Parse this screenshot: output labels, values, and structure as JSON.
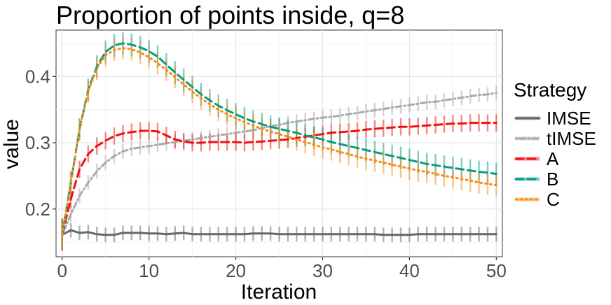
{
  "chart_data": {
    "type": "line",
    "title": "Proportion of points inside, q=8",
    "xlabel": "Iteration",
    "ylabel": "value",
    "xlim": [
      -0.7,
      50.7
    ],
    "ylim": [
      0.128,
      0.47
    ],
    "x_ticks": [
      0,
      10,
      20,
      30,
      40,
      50
    ],
    "y_ticks": [
      0.2,
      0.3,
      0.4
    ],
    "grid": true,
    "legend": {
      "title": "Strategy",
      "position": "right"
    },
    "x": [
      0,
      1,
      2,
      3,
      4,
      5,
      6,
      7,
      8,
      9,
      10,
      11,
      12,
      13,
      14,
      15,
      16,
      17,
      18,
      19,
      20,
      21,
      22,
      23,
      24,
      25,
      26,
      27,
      28,
      29,
      30,
      31,
      32,
      33,
      34,
      35,
      36,
      37,
      38,
      39,
      40,
      41,
      42,
      43,
      44,
      45,
      46,
      47,
      48,
      49,
      50
    ],
    "series": [
      {
        "name": "IMSE",
        "color": "#666666",
        "dash": "solid",
        "error": 0.011,
        "values": [
          0.161,
          0.168,
          0.164,
          0.165,
          0.162,
          0.161,
          0.161,
          0.164,
          0.164,
          0.164,
          0.163,
          0.163,
          0.162,
          0.163,
          0.164,
          0.162,
          0.162,
          0.162,
          0.162,
          0.162,
          0.162,
          0.162,
          0.163,
          0.163,
          0.163,
          0.162,
          0.162,
          0.162,
          0.162,
          0.162,
          0.162,
          0.162,
          0.162,
          0.162,
          0.162,
          0.162,
          0.162,
          0.161,
          0.161,
          0.161,
          0.161,
          0.162,
          0.162,
          0.162,
          0.162,
          0.162,
          0.162,
          0.162,
          0.162,
          0.162,
          0.162
        ]
      },
      {
        "name": "tIMSE",
        "color": "#a9a9a9",
        "dash": "dotdash",
        "error": 0.011,
        "values": [
          0.161,
          0.192,
          0.22,
          0.24,
          0.257,
          0.27,
          0.28,
          0.287,
          0.291,
          0.293,
          0.295,
          0.297,
          0.299,
          0.301,
          0.303,
          0.305,
          0.307,
          0.309,
          0.311,
          0.313,
          0.315,
          0.317,
          0.319,
          0.322,
          0.325,
          0.327,
          0.33,
          0.332,
          0.334,
          0.336,
          0.338,
          0.339,
          0.341,
          0.343,
          0.345,
          0.347,
          0.349,
          0.351,
          0.353,
          0.355,
          0.357,
          0.359,
          0.361,
          0.362,
          0.364,
          0.366,
          0.368,
          0.37,
          0.372,
          0.373,
          0.375
        ]
      },
      {
        "name": "A",
        "color": "#ee1111",
        "dash": "longdash",
        "error": 0.013,
        "values": [
          0.162,
          0.215,
          0.26,
          0.283,
          0.295,
          0.303,
          0.31,
          0.314,
          0.316,
          0.318,
          0.318,
          0.317,
          0.311,
          0.305,
          0.302,
          0.3,
          0.3,
          0.301,
          0.301,
          0.301,
          0.301,
          0.3,
          0.301,
          0.302,
          0.303,
          0.304,
          0.305,
          0.307,
          0.309,
          0.311,
          0.313,
          0.315,
          0.316,
          0.317,
          0.318,
          0.32,
          0.321,
          0.322,
          0.323,
          0.324,
          0.324,
          0.325,
          0.326,
          0.327,
          0.328,
          0.329,
          0.329,
          0.33,
          0.33,
          0.33,
          0.33
        ]
      },
      {
        "name": "B",
        "color": "#009f8a",
        "dash": "longdash",
        "error": 0.017,
        "values": [
          0.161,
          0.24,
          0.32,
          0.38,
          0.415,
          0.437,
          0.447,
          0.45,
          0.448,
          0.444,
          0.438,
          0.43,
          0.418,
          0.406,
          0.395,
          0.384,
          0.373,
          0.364,
          0.356,
          0.349,
          0.343,
          0.337,
          0.332,
          0.328,
          0.324,
          0.321,
          0.318,
          0.315,
          0.311,
          0.308,
          0.305,
          0.301,
          0.298,
          0.295,
          0.292,
          0.289,
          0.286,
          0.283,
          0.28,
          0.277,
          0.274,
          0.271,
          0.268,
          0.266,
          0.264,
          0.262,
          0.26,
          0.258,
          0.256,
          0.255,
          0.253
        ]
      },
      {
        "name": "C",
        "color": "#ff8a10",
        "dash": "dotted",
        "error": 0.017,
        "values": [
          0.161,
          0.24,
          0.32,
          0.378,
          0.412,
          0.432,
          0.44,
          0.443,
          0.441,
          0.436,
          0.429,
          0.42,
          0.41,
          0.399,
          0.388,
          0.377,
          0.367,
          0.358,
          0.35,
          0.343,
          0.337,
          0.331,
          0.326,
          0.321,
          0.317,
          0.313,
          0.309,
          0.305,
          0.301,
          0.297,
          0.293,
          0.29,
          0.286,
          0.283,
          0.279,
          0.276,
          0.273,
          0.27,
          0.267,
          0.264,
          0.261,
          0.258,
          0.256,
          0.253,
          0.25,
          0.248,
          0.245,
          0.243,
          0.24,
          0.238,
          0.236
        ]
      }
    ]
  }
}
